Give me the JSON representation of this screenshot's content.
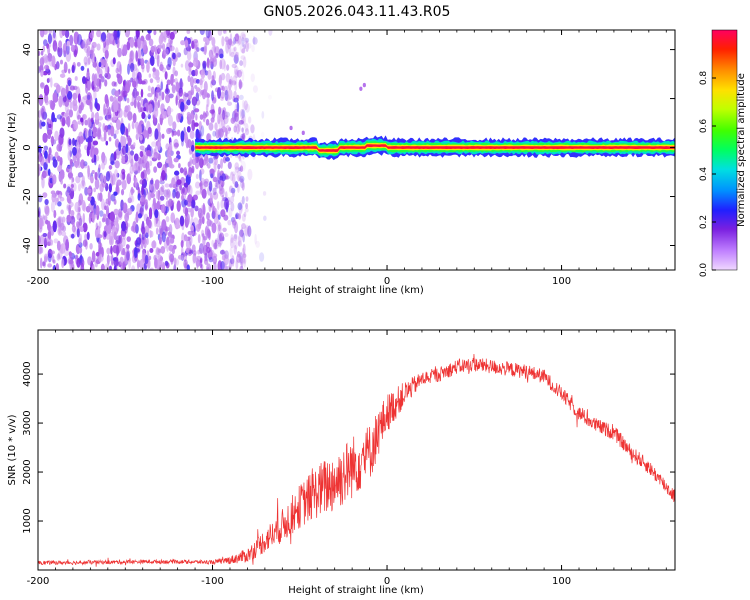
{
  "figure": {
    "title": "GN05.2026.043.11.43.R05"
  },
  "chart_data": [
    {
      "type": "heatmap",
      "title": "GN05.2026.043.11.43.R05",
      "xlabel": "Height of straight line (km)",
      "ylabel": "Frequency (Hz)",
      "xlim": [
        -200,
        165
      ],
      "ylim": [
        -50,
        48
      ],
      "x_ticks": [
        -200,
        -100,
        0,
        100
      ],
      "x_tick_labels": [
        "-200",
        "-100",
        "0",
        "100"
      ],
      "y_ticks": [
        -40,
        -20,
        0,
        20,
        40
      ],
      "y_tick_labels": [
        "-40",
        "-20",
        "0",
        "20",
        "40"
      ],
      "colorbar": {
        "label": "Normalized spectral amplitude",
        "range": [
          0,
          1
        ],
        "ticks": [
          0.0,
          0.2,
          0.4,
          0.6,
          0.8
        ],
        "tick_labels": [
          "0.0",
          "0.2",
          "0.4",
          "0.6",
          "0.8"
        ],
        "colormap": [
          "#e8c8f8",
          "#8a2be2",
          "#3030ff",
          "#00c8ff",
          "#00ff80",
          "#40ff00",
          "#ffff00",
          "#ffa000",
          "#ff2000",
          "#ff0060"
        ]
      },
      "regions": {
        "noise_x_range": [
          -200,
          -80
        ],
        "noise_amplitude": [
          0.05,
          0.2
        ],
        "carrier_x_range": [
          -110,
          165
        ],
        "carrier_frequency_hz": 0,
        "carrier_peak_amplitude": 0.95
      },
      "grid": false
    },
    {
      "type": "line",
      "xlabel": "Height of straight line (km)",
      "ylabel": "SNR (10 * v/v)",
      "xlim": [
        -200,
        165
      ],
      "ylim": [
        0,
        4900
      ],
      "x_ticks": [
        -200,
        -100,
        0,
        100
      ],
      "x_tick_labels": [
        "-200",
        "-100",
        "0",
        "100"
      ],
      "y_ticks": [
        1000,
        2000,
        3000,
        4000
      ],
      "y_tick_labels": [
        "1000",
        "2000",
        "3000",
        "4000"
      ],
      "series_color": "#ee3333",
      "grid": false,
      "x": [
        -200,
        -180,
        -160,
        -140,
        -120,
        -100,
        -90,
        -80,
        -70,
        -60,
        -50,
        -40,
        -30,
        -20,
        -10,
        0,
        10,
        20,
        30,
        40,
        50,
        60,
        70,
        80,
        90,
        100,
        110,
        120,
        130,
        140,
        150,
        160,
        165
      ],
      "y": [
        150,
        150,
        160,
        170,
        170,
        160,
        200,
        300,
        600,
        900,
        1300,
        1600,
        1800,
        2100,
        2400,
        3200,
        3600,
        3900,
        4000,
        4150,
        4200,
        4150,
        4100,
        4050,
        3950,
        3600,
        3200,
        2950,
        2800,
        2400,
        2100,
        1700,
        1500
      ],
      "noise_amplitude": [
        40,
        40,
        40,
        40,
        40,
        40,
        80,
        150,
        250,
        350,
        450,
        550,
        650,
        650,
        600,
        400,
        250,
        150,
        150,
        150,
        150,
        150,
        150,
        150,
        150,
        150,
        150,
        150,
        150,
        150,
        150,
        150,
        150
      ]
    }
  ]
}
